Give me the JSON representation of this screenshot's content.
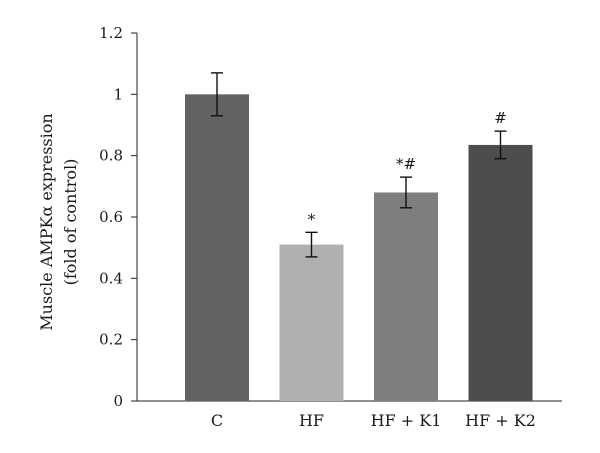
{
  "chart_data": {
    "type": "bar",
    "categories": [
      "C",
      "HF",
      "HF + K1",
      "HF + K2"
    ],
    "values": [
      1.0,
      0.51,
      0.68,
      0.835
    ],
    "errors": [
      0.07,
      0.04,
      0.05,
      0.045
    ],
    "annotations": [
      "",
      "*",
      "*#",
      "#"
    ],
    "bar_colors": [
      "#636363",
      "#b0b0b0",
      "#7e7e7e",
      "#4d4d4d"
    ],
    "ylabel_lines": [
      "Muscle AMPKα expression",
      "(fold of control)"
    ],
    "ylim": [
      0,
      1.2
    ],
    "yticks": [
      0,
      0.2,
      0.4,
      0.6,
      0.8,
      1,
      1.2
    ],
    "ytick_labels": [
      "0",
      "0.2",
      "0.4",
      "0.6",
      "0.8",
      "1",
      "1.2"
    ],
    "grid": false,
    "legend": "none"
  }
}
